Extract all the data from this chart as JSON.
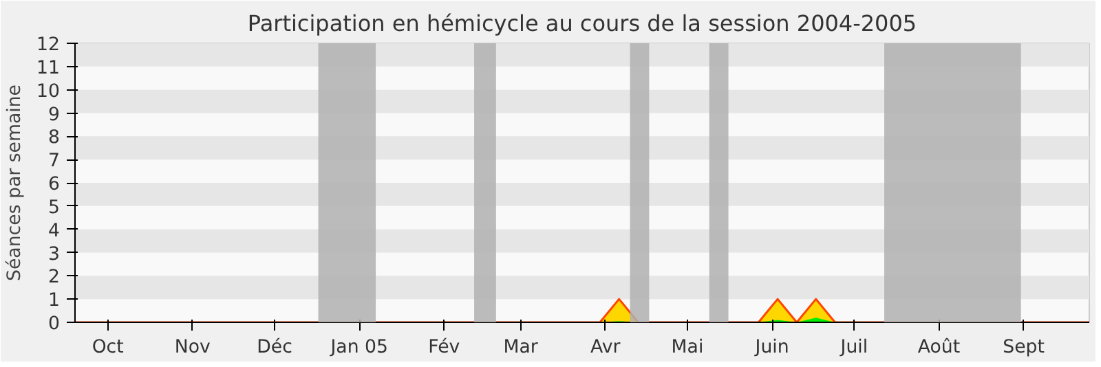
{
  "chart_data": {
    "type": "area",
    "title": "Participation en hémicycle au cours de la session 2004-2005",
    "ylabel": "Séances par semaine",
    "xlim": [
      "2004-09-19",
      "2005-09-25"
    ],
    "xticks": [
      {
        "value": "2004-10-01",
        "label": "Oct"
      },
      {
        "value": "2004-11-01",
        "label": "Nov"
      },
      {
        "value": "2004-12-01",
        "label": "Déc"
      },
      {
        "value": "2005-01-01",
        "label": "Jan 05"
      },
      {
        "value": "2005-02-01",
        "label": "Fév"
      },
      {
        "value": "2005-03-01",
        "label": "Mar"
      },
      {
        "value": "2005-04-01",
        "label": "Avr"
      },
      {
        "value": "2005-05-01",
        "label": "Mai"
      },
      {
        "value": "2005-06-01",
        "label": "Juin"
      },
      {
        "value": "2005-07-01",
        "label": "Juil"
      },
      {
        "value": "2005-08-01",
        "label": "Août"
      },
      {
        "value": "2005-09-01",
        "label": "Sept"
      }
    ],
    "ylim": [
      0,
      12
    ],
    "yticks": [
      0,
      1,
      2,
      3,
      4,
      5,
      6,
      7,
      8,
      9,
      10,
      11,
      12
    ],
    "bands": [
      {
        "axis": "x",
        "from": "2004-12-17",
        "to": "2005-01-07",
        "color": "#b0b0b0"
      },
      {
        "axis": "x",
        "from": "2005-02-12",
        "to": "2005-02-20",
        "color": "#b0b0b0"
      },
      {
        "axis": "x",
        "from": "2005-04-10",
        "to": "2005-04-17",
        "color": "#b0b0b0"
      },
      {
        "axis": "x",
        "from": "2005-05-09",
        "to": "2005-05-16",
        "color": "#b0b0b0"
      },
      {
        "axis": "x",
        "from": "2005-07-12",
        "to": "2005-08-31",
        "color": "#b0b0b0"
      }
    ],
    "series": [
      {
        "color": "#ffd700",
        "x": [
          "2004-09-19",
          "2005-03-30",
          "2005-04-06",
          "2005-04-13",
          "2005-05-27",
          "2005-06-03",
          "2005-06-10",
          "2005-06-17",
          "2005-06-24",
          "2005-09-25"
        ],
        "values": [
          0,
          0,
          1,
          0,
          0,
          1,
          0,
          1,
          0,
          0
        ]
      },
      {
        "color": "#00ee00",
        "x": [
          "2004-09-19",
          "2005-03-30",
          "2005-04-06",
          "2005-04-13",
          "2005-05-27",
          "2005-06-03",
          "2005-06-10",
          "2005-06-17",
          "2005-06-24",
          "2005-09-25"
        ],
        "values": [
          0,
          0,
          0.05,
          0,
          0,
          0.1,
          0,
          0.2,
          0,
          0
        ]
      }
    ]
  }
}
